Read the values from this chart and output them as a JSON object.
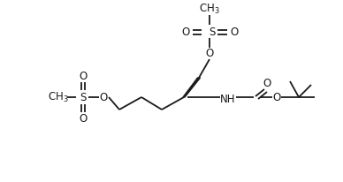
{
  "bg_color": "#ffffff",
  "line_color": "#1a1a1a",
  "line_width": 1.3,
  "font_size": 8.5,
  "figsize": [
    3.88,
    2.06
  ],
  "dpi": 100,
  "xlim": [
    0,
    388
  ],
  "ylim": [
    0,
    206
  ]
}
